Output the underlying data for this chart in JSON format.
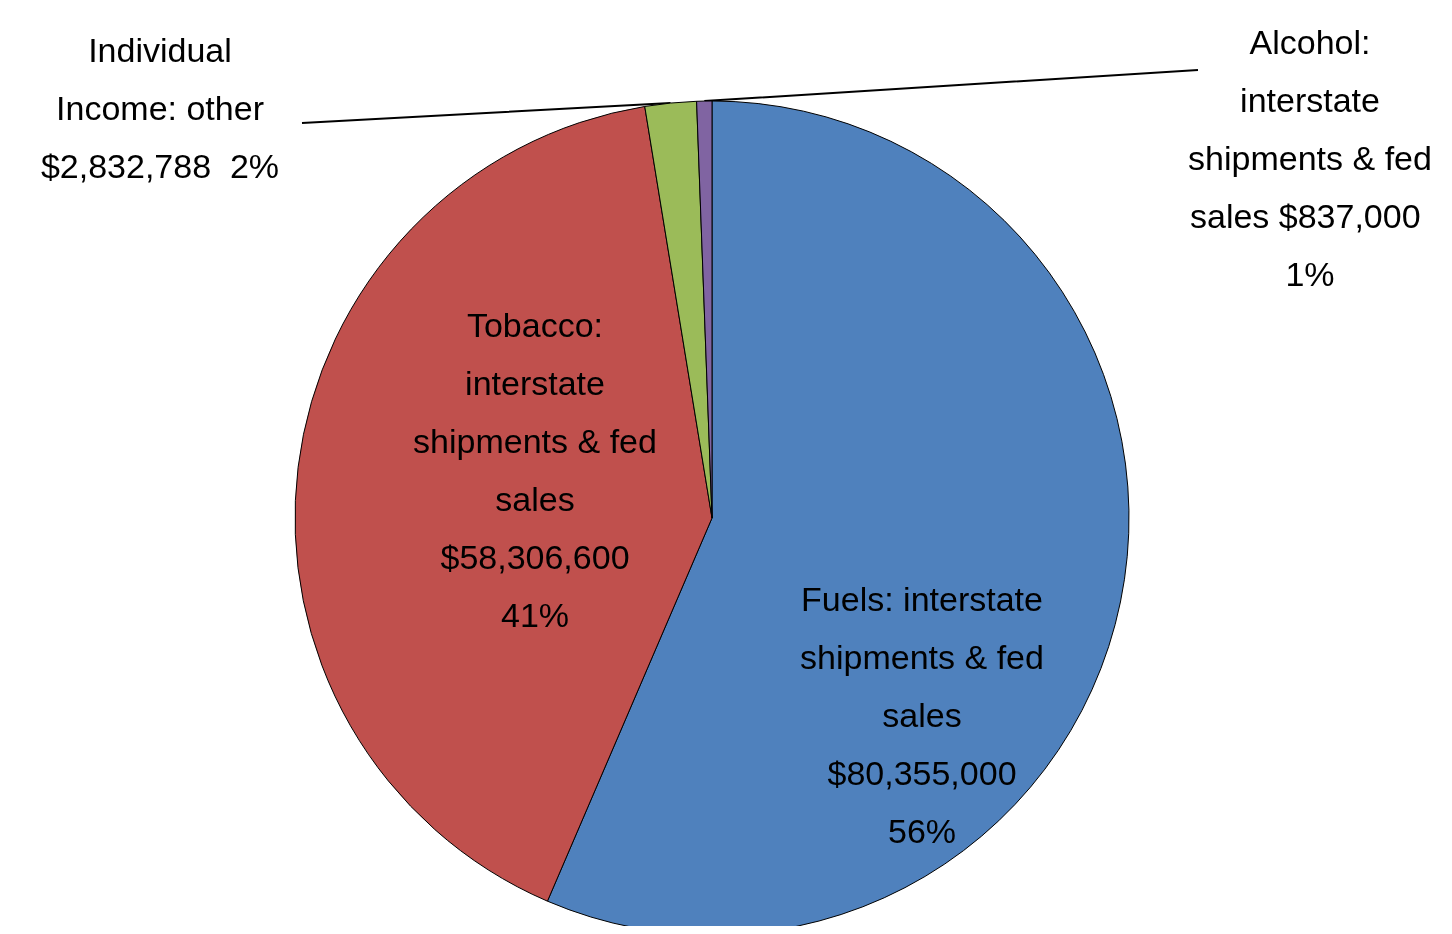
{
  "chart_data": {
    "type": "pie",
    "categories": [
      "Fuels: interstate shipments & fed sales",
      "Tobacco: interstate shipments & fed sales",
      "Individual Income: other",
      "Alcohol: interstate shipments & fed sales"
    ],
    "values": [
      80355000,
      58306600,
      2832788,
      837000
    ],
    "colors": [
      "#4f81bd",
      "#c0504d",
      "#9bbb59",
      "#8064a2"
    ],
    "value_labels": [
      "$80,355,000 56%",
      "$58,306,600 41%",
      "$2,832,788  2%",
      "$837,000  1%"
    ]
  }
}
